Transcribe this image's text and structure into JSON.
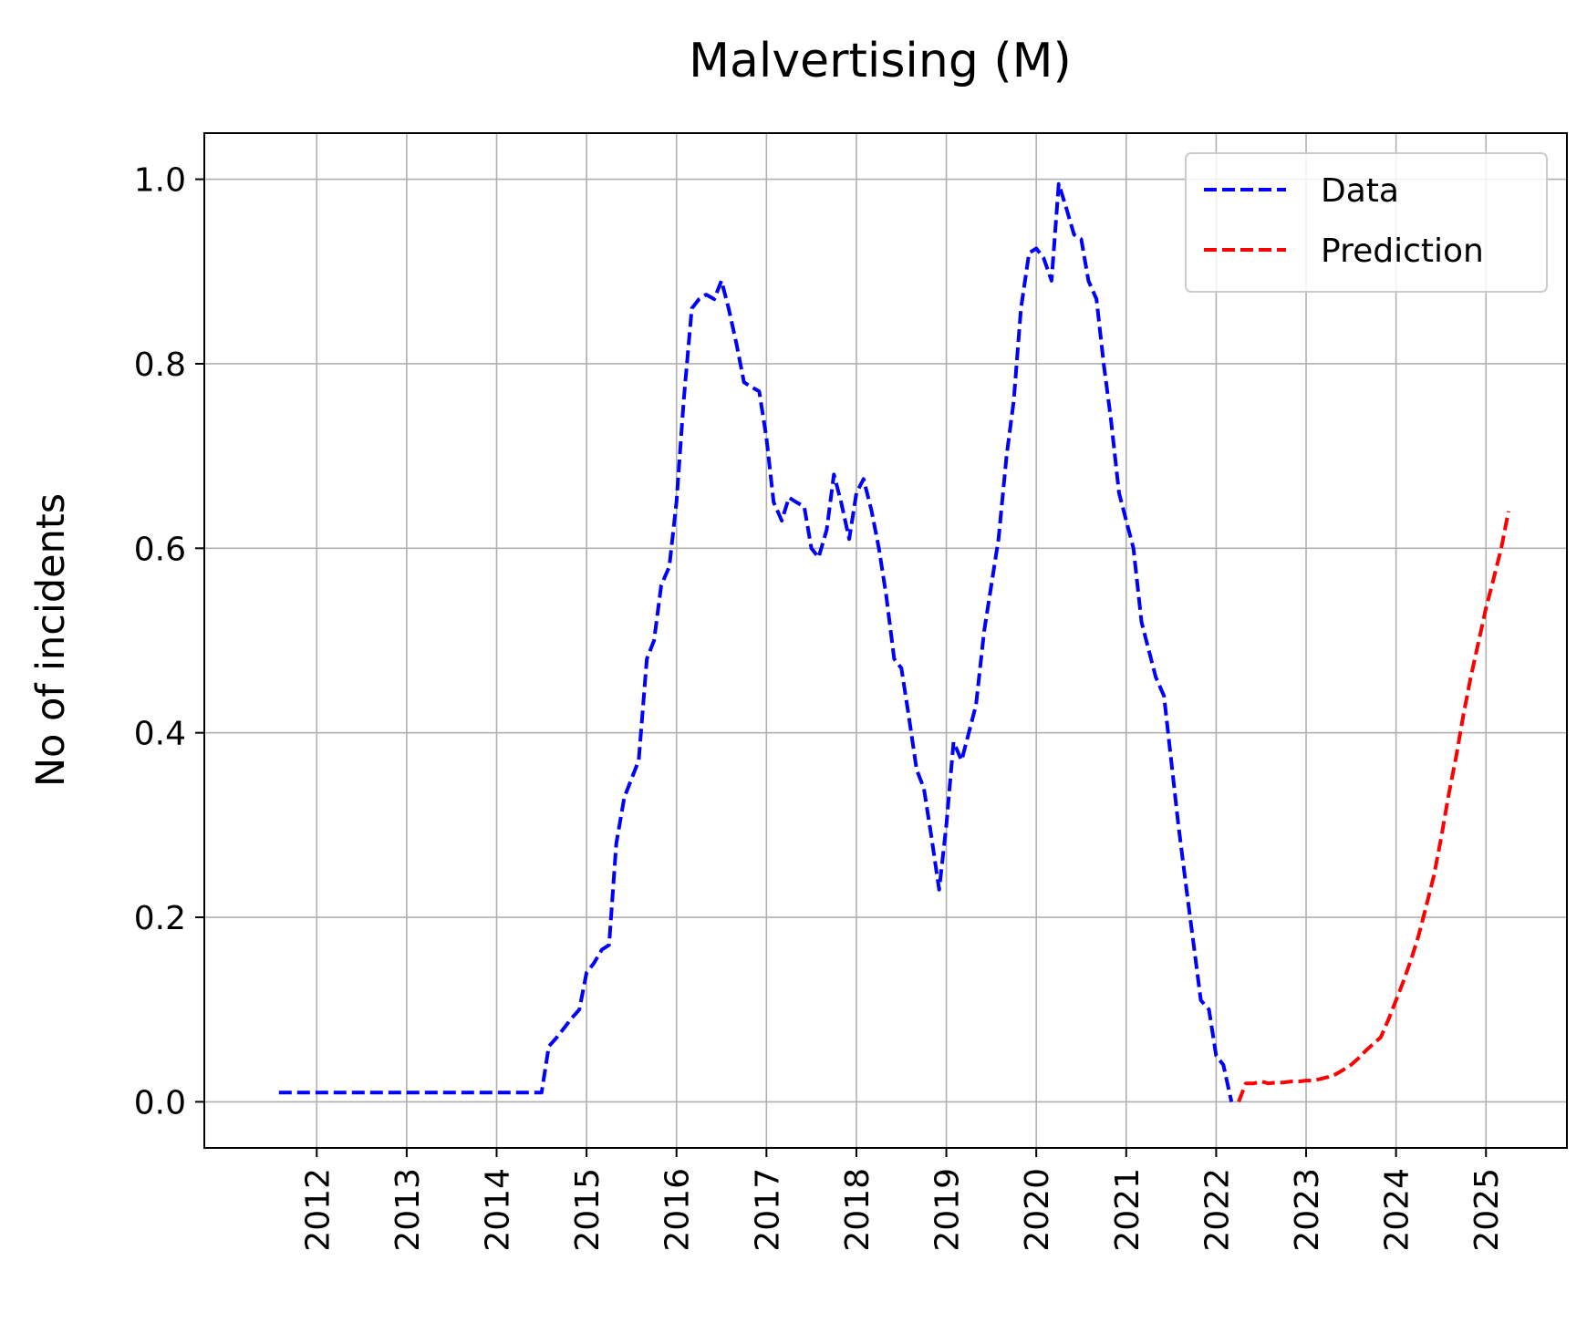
{
  "chart_data": {
    "type": "line",
    "title": "Malvertising (M)",
    "xlabel": "",
    "ylabel": "No of incidents",
    "xlim": [
      2010.75,
      2025.9
    ],
    "ylim": [
      -0.05,
      1.05
    ],
    "xticks": [
      2012,
      2013,
      2014,
      2015,
      2016,
      2017,
      2018,
      2019,
      2020,
      2021,
      2022,
      2023,
      2024,
      2025
    ],
    "yticks": [
      0.0,
      0.2,
      0.4,
      0.6,
      0.8,
      1.0
    ],
    "grid": true,
    "legend_position": "top-right",
    "series": [
      {
        "name": "Data",
        "color": "#0000ff",
        "style": "dashed",
        "points": [
          [
            2011.58,
            0.01
          ],
          [
            2014.5,
            0.01
          ],
          [
            2014.58,
            0.06
          ],
          [
            2014.67,
            0.07
          ],
          [
            2014.75,
            0.08
          ],
          [
            2014.83,
            0.09
          ],
          [
            2014.92,
            0.1
          ],
          [
            2015.0,
            0.14
          ],
          [
            2015.08,
            0.15
          ],
          [
            2015.17,
            0.165
          ],
          [
            2015.25,
            0.17
          ],
          [
            2015.33,
            0.28
          ],
          [
            2015.42,
            0.33
          ],
          [
            2015.5,
            0.35
          ],
          [
            2015.58,
            0.37
          ],
          [
            2015.67,
            0.48
          ],
          [
            2015.75,
            0.5
          ],
          [
            2015.83,
            0.56
          ],
          [
            2015.92,
            0.58
          ],
          [
            2016.0,
            0.65
          ],
          [
            2016.08,
            0.76
          ],
          [
            2016.17,
            0.86
          ],
          [
            2016.25,
            0.87
          ],
          [
            2016.33,
            0.875
          ],
          [
            2016.42,
            0.87
          ],
          [
            2016.5,
            0.89
          ],
          [
            2016.58,
            0.86
          ],
          [
            2016.67,
            0.82
          ],
          [
            2016.75,
            0.78
          ],
          [
            2016.83,
            0.775
          ],
          [
            2016.92,
            0.77
          ],
          [
            2017.0,
            0.72
          ],
          [
            2017.08,
            0.65
          ],
          [
            2017.17,
            0.63
          ],
          [
            2017.25,
            0.655
          ],
          [
            2017.33,
            0.65
          ],
          [
            2017.42,
            0.645
          ],
          [
            2017.5,
            0.6
          ],
          [
            2017.58,
            0.59
          ],
          [
            2017.67,
            0.62
          ],
          [
            2017.75,
            0.68
          ],
          [
            2017.83,
            0.65
          ],
          [
            2017.92,
            0.61
          ],
          [
            2018.0,
            0.66
          ],
          [
            2018.08,
            0.675
          ],
          [
            2018.17,
            0.64
          ],
          [
            2018.25,
            0.6
          ],
          [
            2018.33,
            0.55
          ],
          [
            2018.42,
            0.48
          ],
          [
            2018.5,
            0.47
          ],
          [
            2018.58,
            0.42
          ],
          [
            2018.67,
            0.36
          ],
          [
            2018.75,
            0.34
          ],
          [
            2018.83,
            0.29
          ],
          [
            2018.92,
            0.23
          ],
          [
            2019.0,
            0.3
          ],
          [
            2019.08,
            0.39
          ],
          [
            2019.17,
            0.37
          ],
          [
            2019.25,
            0.4
          ],
          [
            2019.33,
            0.43
          ],
          [
            2019.42,
            0.51
          ],
          [
            2019.5,
            0.56
          ],
          [
            2019.58,
            0.61
          ],
          [
            2019.67,
            0.7
          ],
          [
            2019.75,
            0.76
          ],
          [
            2019.83,
            0.86
          ],
          [
            2019.92,
            0.92
          ],
          [
            2020.0,
            0.925
          ],
          [
            2020.08,
            0.915
          ],
          [
            2020.17,
            0.89
          ],
          [
            2020.25,
            0.995
          ],
          [
            2020.33,
            0.97
          ],
          [
            2020.42,
            0.94
          ],
          [
            2020.5,
            0.935
          ],
          [
            2020.58,
            0.89
          ],
          [
            2020.67,
            0.87
          ],
          [
            2020.75,
            0.8
          ],
          [
            2020.83,
            0.74
          ],
          [
            2020.92,
            0.66
          ],
          [
            2021.0,
            0.63
          ],
          [
            2021.08,
            0.6
          ],
          [
            2021.17,
            0.52
          ],
          [
            2021.25,
            0.49
          ],
          [
            2021.33,
            0.46
          ],
          [
            2021.42,
            0.44
          ],
          [
            2021.5,
            0.37
          ],
          [
            2021.58,
            0.3
          ],
          [
            2021.67,
            0.23
          ],
          [
            2021.75,
            0.17
          ],
          [
            2021.83,
            0.11
          ],
          [
            2021.92,
            0.1
          ],
          [
            2022.0,
            0.05
          ],
          [
            2022.08,
            0.04
          ],
          [
            2022.17,
            0.0
          ]
        ]
      },
      {
        "name": "Prediction",
        "color": "#ff0000",
        "style": "dashed",
        "points": [
          [
            2022.25,
            0.0
          ],
          [
            2022.33,
            0.02
          ],
          [
            2022.42,
            0.02
          ],
          [
            2022.5,
            0.022
          ],
          [
            2022.58,
            0.02
          ],
          [
            2022.67,
            0.021
          ],
          [
            2022.75,
            0.021
          ],
          [
            2022.83,
            0.022
          ],
          [
            2022.92,
            0.022
          ],
          [
            2023.0,
            0.023
          ],
          [
            2023.08,
            0.023
          ],
          [
            2023.17,
            0.025
          ],
          [
            2023.25,
            0.027
          ],
          [
            2023.33,
            0.03
          ],
          [
            2023.42,
            0.035
          ],
          [
            2023.5,
            0.04
          ],
          [
            2023.58,
            0.047
          ],
          [
            2023.67,
            0.056
          ],
          [
            2023.75,
            0.063
          ],
          [
            2023.83,
            0.07
          ],
          [
            2023.92,
            0.09
          ],
          [
            2024.0,
            0.11
          ],
          [
            2024.08,
            0.13
          ],
          [
            2024.17,
            0.155
          ],
          [
            2024.25,
            0.18
          ],
          [
            2024.33,
            0.21
          ],
          [
            2024.42,
            0.245
          ],
          [
            2024.5,
            0.285
          ],
          [
            2024.58,
            0.33
          ],
          [
            2024.67,
            0.375
          ],
          [
            2024.75,
            0.42
          ],
          [
            2024.83,
            0.46
          ],
          [
            2024.92,
            0.5
          ],
          [
            2025.0,
            0.535
          ],
          [
            2025.08,
            0.565
          ],
          [
            2025.17,
            0.6
          ],
          [
            2025.25,
            0.64
          ]
        ]
      }
    ]
  }
}
